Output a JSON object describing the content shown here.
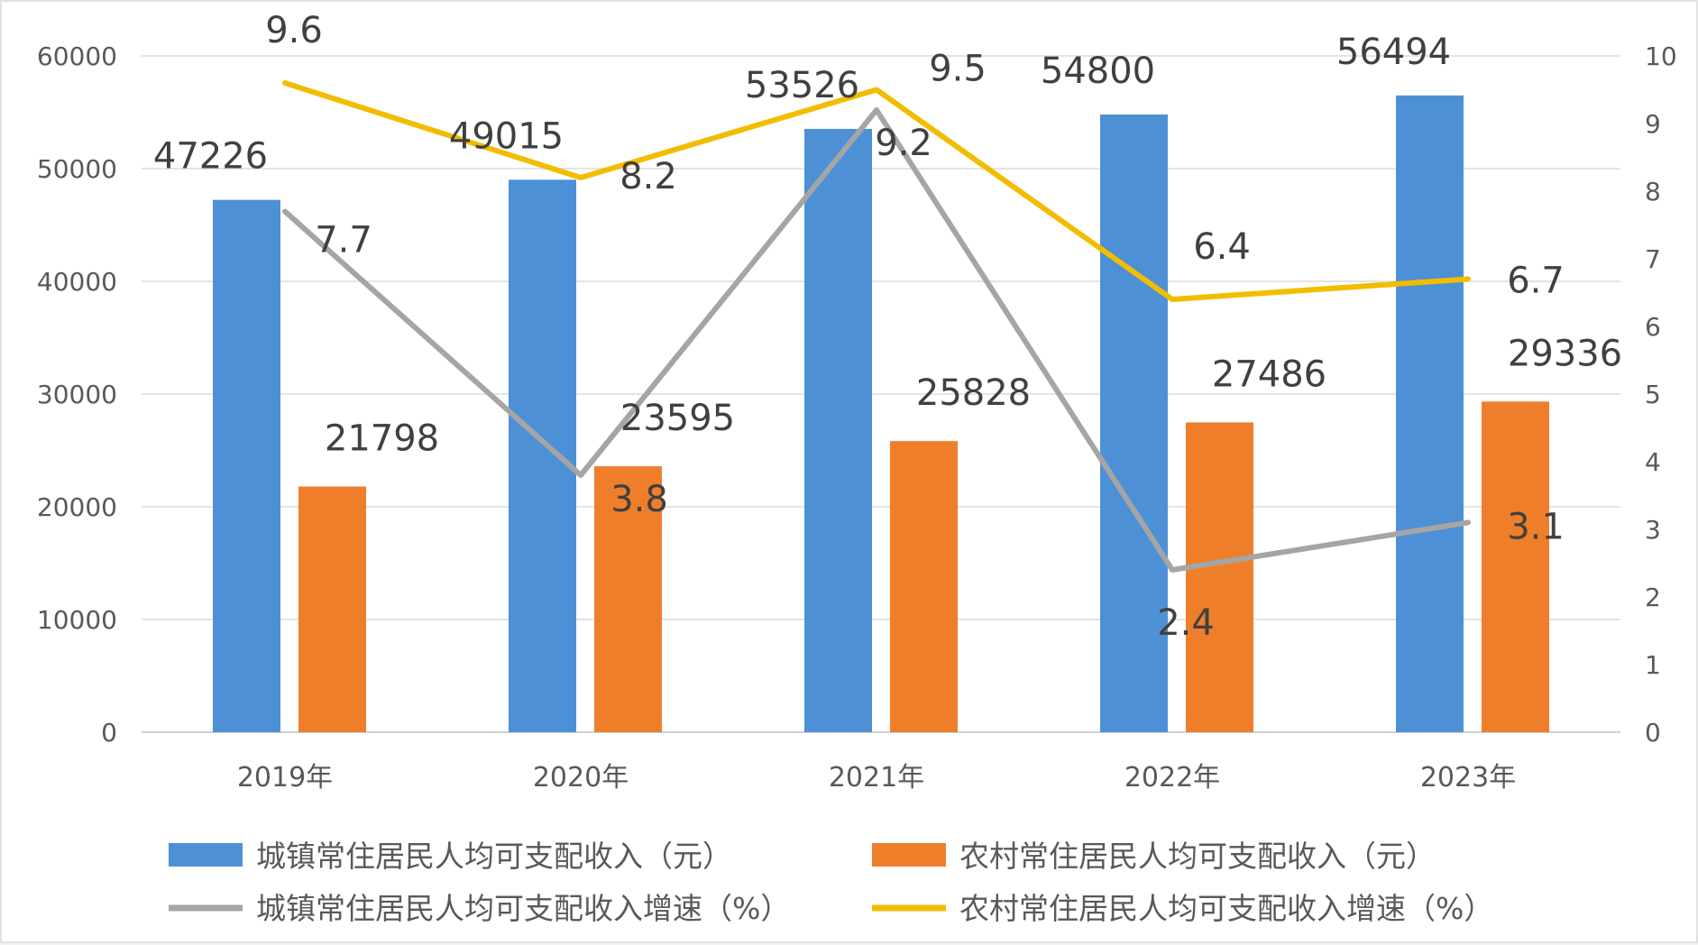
{
  "chart_data": {
    "type": "bar",
    "categories": [
      "2019年",
      "2020年",
      "2021年",
      "2022年",
      "2023年"
    ],
    "series": [
      {
        "name": "城镇常住居民人均可支配收入（元）",
        "type": "bar",
        "axis": "left",
        "color": "#4e90d6",
        "values": [
          47226,
          49015,
          53526,
          54800,
          56494
        ],
        "labels": [
          "47226",
          "49015",
          "53526",
          "54800",
          "56494"
        ]
      },
      {
        "name": "农村常住居民人均可支配收入（元）",
        "type": "bar",
        "axis": "left",
        "color": "#ef7e2b",
        "values": [
          21798,
          23595,
          25828,
          27486,
          29336
        ],
        "labels": [
          "21798",
          "23595",
          "25828",
          "27486",
          "29336"
        ]
      },
      {
        "name": "城镇常住居民人均可支配收入增速（%）",
        "type": "line",
        "axis": "right",
        "color": "#a5a5a5",
        "values": [
          7.7,
          3.8,
          9.2,
          2.4,
          3.1
        ],
        "labels": [
          "7.7",
          "3.8",
          "9.2",
          "2.4",
          "3.1"
        ]
      },
      {
        "name": "农村常住居民人均可支配收入增速（%）",
        "type": "line",
        "axis": "right",
        "color": "#f2bd00",
        "values": [
          9.6,
          8.2,
          9.5,
          6.4,
          6.7
        ],
        "labels": [
          "9.6",
          "8.2",
          "9.5",
          "6.4",
          "6.7"
        ]
      }
    ],
    "y_left": {
      "range": [
        0,
        60000
      ],
      "ticks": [
        "0",
        "10000",
        "20000",
        "30000",
        "40000",
        "50000",
        "60000"
      ]
    },
    "y_right": {
      "range": [
        0,
        10
      ],
      "ticks": [
        "0",
        "1",
        "2",
        "3",
        "4",
        "5",
        "6",
        "7",
        "8",
        "9",
        "10"
      ]
    },
    "grid": true,
    "legend_position": "bottom"
  }
}
